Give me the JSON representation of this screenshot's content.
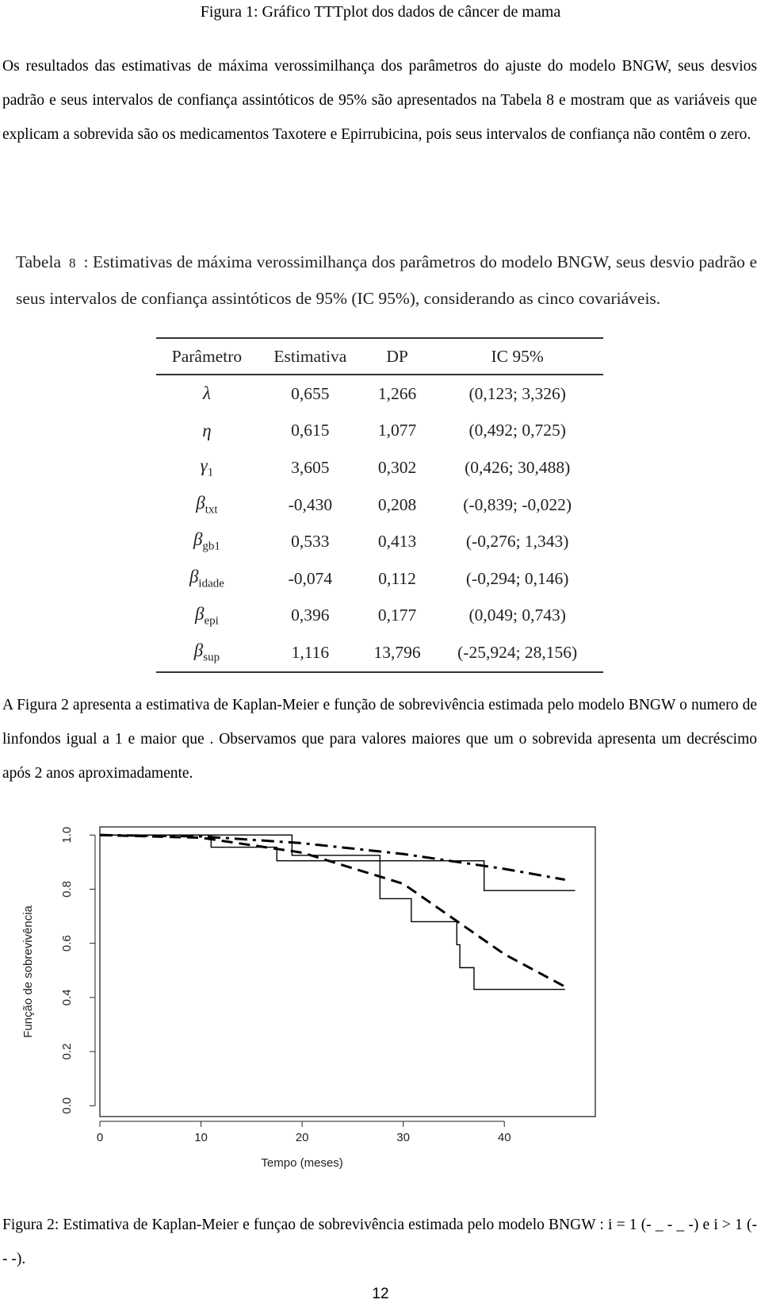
{
  "figure1_caption": "Figura 1: Gráfico TTTplot dos dados de câncer de mama",
  "paragraph1": "Os resultados das estimativas de máxima verossimilhança dos parâmetros do ajuste do modelo BNGW, seus desvios padrão e seus intervalos de confiança assintóticos de 95% são apresentados na Tabela 8 e mostram que as variáveis que explicam a sobrevida são os medicamentos Taxotere e Epirrubicina, pois seus intervalos de confiança não contêm o zero.",
  "table": {
    "caption_label": "Tabela",
    "caption_number": "8",
    "caption_text": ": Estimativas de máxima verossimilhança dos parâmetros do modelo BNGW, seus desvio padrão e seus intervalos de confiança assintóticos de 95% (IC 95%), considerando as cinco covariáveis.",
    "header": [
      "Parâmetro",
      "Estimativa",
      "DP",
      "IC 95%"
    ],
    "rows": [
      {
        "symbol": "λ",
        "cells": [
          "0,655",
          "1,266",
          "(0,123; 3,326)"
        ]
      },
      {
        "symbol": "η",
        "cells": [
          "0,615",
          "1,077",
          "(0,492; 0,725)"
        ]
      },
      {
        "symbol": "γ",
        "sub": "1",
        "cells": [
          "3,605",
          "0,302",
          "(0,426; 30,488)"
        ]
      },
      {
        "symbol": "β",
        "sub": "txt",
        "cells": [
          "-0,430",
          "0,208",
          "(-0,839; -0,022)"
        ]
      },
      {
        "symbol": "β",
        "sub": "gb1",
        "cells": [
          "0,533",
          "0,413",
          "(-0,276; 1,343)"
        ]
      },
      {
        "symbol": "β",
        "sub": "idade",
        "cells": [
          "-0,074",
          "0,112",
          "(-0,294; 0,146)"
        ]
      },
      {
        "symbol": "β",
        "sub": "epi",
        "cells": [
          "0,396",
          "0,177",
          "(0,049; 0,743)"
        ]
      },
      {
        "symbol": "β",
        "sub": "sup",
        "cells": [
          "1,116",
          "13,796",
          "(-25,924; 28,156)"
        ]
      }
    ]
  },
  "paragraph2": "A Figura 2 apresenta a estimativa de Kaplan-Meier e função de sobrevivência estimada pelo modelo BNGW o numero de linfondos igual a 1 e maior que . Observamos que para valores maiores que um o sobrevida apresenta um decréscimo após 2 anos aproximadamente.",
  "chart_data": {
    "type": "line",
    "x_label": "Tempo (meses)",
    "y_label": "Função de sobrevivência",
    "xlim": [
      0,
      49
    ],
    "ylim": [
      -0.04,
      1.03
    ],
    "xticks": [
      0,
      10,
      20,
      30,
      40
    ],
    "yticks": [
      {
        "value": 0,
        "label": "0.0"
      },
      {
        "value": 0.2,
        "label": "0.2"
      },
      {
        "value": 0.4,
        "label": "0.4"
      },
      {
        "value": 0.6,
        "label": "0.6"
      },
      {
        "value": 0.8,
        "label": "0.8"
      },
      {
        "value": 1,
        "label": "1.0"
      }
    ],
    "series": [
      {
        "color": "#000000",
        "dash": "solid",
        "x": [
          0,
          11,
          11,
          17.5,
          17.5,
          38,
          38,
          47
        ],
        "values": [
          1,
          1,
          0.955,
          0.955,
          0.905,
          0.905,
          0.795,
          0.795
        ]
      },
      {
        "color": "#000000",
        "dash": "solid",
        "x": [
          0,
          19,
          19,
          27.7,
          27.7,
          30.8,
          30.8,
          35.3,
          35.3,
          35.6,
          35.6,
          37,
          37,
          46
        ],
        "values": [
          1,
          1,
          0.925,
          0.925,
          0.765,
          0.765,
          0.68,
          0.68,
          0.595,
          0.595,
          0.51,
          0.51,
          0.43,
          0.43
        ]
      },
      {
        "color": "#000000",
        "dash": "dashdot",
        "x": [
          0,
          10,
          20,
          30,
          40,
          46
        ],
        "values": [
          1,
          0.995,
          0.97,
          0.93,
          0.875,
          0.835
        ]
      },
      {
        "color": "#000000",
        "dash": "dashed",
        "x": [
          0,
          10,
          20,
          30,
          40,
          46
        ],
        "values": [
          1,
          0.99,
          0.935,
          0.82,
          0.56,
          0.44
        ]
      }
    ]
  },
  "figure2_caption": "Figura 2:  Estimativa de Kaplan-Meier e funçao de sobrevivência estimada pelo modelo BNGW : i = 1 (- _ - _ -) e i > 1 (- - -).",
  "page_number": "12"
}
